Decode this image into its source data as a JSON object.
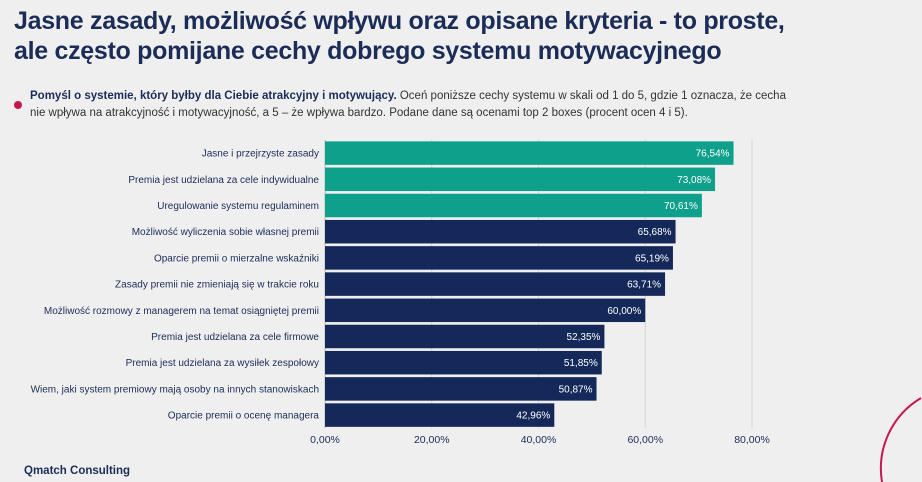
{
  "title_lines": [
    "Jasne zasady, możliwość wpływu oraz opisane kryteria - to proste,",
    "ale często pomijane cechy dobrego systemu motywacyjnego"
  ],
  "note": {
    "bold": "Pomyśl o systemie, który byłby dla Ciebie atrakcyjny i motywujący.",
    "text": " Oceń poniższe cechy systemu w skali od 1 do 5, gdzie 1 oznacza, że cecha nie wpływa na atrakcyjność i motywacyjność, a 5 – że wpływa bardzo. Podane dane są ocenami top 2 boxes (procent ocen 4 i 5)."
  },
  "footer": "Qmatch Consulting",
  "colors": {
    "highlight": "#0fa08b",
    "default": "#14295a",
    "accent": "#c8174f"
  },
  "chart_data": {
    "type": "bar",
    "orientation": "horizontal",
    "categories": [
      "Jasne i przejrzyste zasady",
      "Premia jest udzielana za cele indywidualne",
      "Uregulowanie systemu regulaminem",
      "Możliwość wyliczenia sobie własnej premii",
      "Oparcie premii o mierzalne wskaźniki",
      "Zasady premii nie zmieniają się w trakcie roku",
      "Możliwość rozmowy z managerem na temat osiągniętej premii",
      "Premia jest udzielana za cele firmowe",
      "Premia jest udzielana za wysiłek zespołowy",
      "Wiem, jaki system premiowy mają osoby na innych stanowiskach",
      "Oparcie premii o ocenę managera"
    ],
    "values": [
      76.54,
      73.08,
      70.61,
      65.68,
      65.19,
      63.71,
      60.0,
      52.35,
      51.85,
      50.87,
      42.96
    ],
    "labels": [
      "76,54%",
      "73,08%",
      "70,61%",
      "65,68%",
      "65,19%",
      "63,71%",
      "60,00%",
      "52,35%",
      "51,85%",
      "50,87%",
      "42,96%"
    ],
    "highlighted_count": 3,
    "xlim": [
      0,
      80
    ],
    "xticks": [
      0,
      20,
      40,
      60,
      80
    ],
    "xtick_labels": [
      "0,00%",
      "20,00%",
      "40,00%",
      "60,00%",
      "80,00%"
    ],
    "grid": "vertical"
  }
}
